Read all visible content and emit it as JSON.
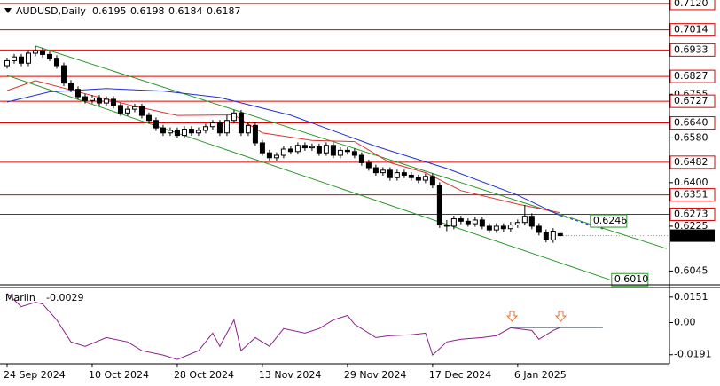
{
  "chart_data": [
    {
      "type": "candlestick",
      "symbol": "AUDUSD,Daily",
      "categories": [
        "24 Sep 2024",
        null,
        null,
        null,
        null,
        null,
        null,
        null,
        null,
        null,
        null,
        null,
        "10 Oct 2024",
        null,
        null,
        null,
        null,
        null,
        null,
        null,
        null,
        null,
        null,
        null,
        "28 Oct 2024",
        null,
        null,
        null,
        null,
        null,
        null,
        null,
        null,
        null,
        null,
        null,
        "13 Nov 2024",
        null,
        null,
        null,
        null,
        null,
        null,
        null,
        null,
        null,
        null,
        null,
        "29 Nov 2024",
        null,
        null,
        null,
        null,
        null,
        null,
        null,
        null,
        null,
        null,
        null,
        "17 Dec 2024",
        null,
        null,
        null,
        null,
        null,
        null,
        null,
        null,
        null,
        null,
        null,
        "6 Jan 2025",
        null,
        null,
        null,
        null,
        null,
        null
      ],
      "open": [
        0.687,
        0.689,
        0.6905,
        0.688,
        0.692,
        0.693,
        0.6915,
        0.69,
        0.687,
        0.68,
        0.6775,
        0.6745,
        0.673,
        0.674,
        0.672,
        0.6735,
        0.671,
        0.668,
        0.6695,
        0.6705,
        0.667,
        0.665,
        0.662,
        0.66,
        0.661,
        0.659,
        0.6615,
        0.66,
        0.661,
        0.6625,
        0.664,
        0.66,
        0.665,
        0.668,
        0.66,
        0.663,
        0.656,
        0.652,
        0.65,
        0.651,
        0.6535,
        0.6525,
        0.655,
        0.654,
        0.6545,
        0.652,
        0.655,
        0.651,
        0.653,
        0.6525,
        0.651,
        0.648,
        0.646,
        0.644,
        0.645,
        0.642,
        0.644,
        0.643,
        0.642,
        0.641,
        0.6425,
        0.639,
        0.623,
        0.6225,
        0.6255,
        0.6245,
        0.6235,
        0.625,
        0.6225,
        0.621,
        0.6225,
        0.6215,
        0.623,
        0.624,
        0.6265,
        0.6225,
        0.62,
        0.617,
        0.6195
      ],
      "high": [
        0.6902,
        0.6917,
        0.6917,
        0.6932,
        0.6948,
        0.6942,
        0.6927,
        0.6912,
        0.6882,
        0.6812,
        0.6787,
        0.6757,
        0.6752,
        0.6752,
        0.6747,
        0.6747,
        0.6722,
        0.6707,
        0.6717,
        0.6717,
        0.6682,
        0.6662,
        0.6632,
        0.6622,
        0.6622,
        0.6627,
        0.6627,
        0.6622,
        0.6637,
        0.6652,
        0.6652,
        0.6672,
        0.6692,
        0.6692,
        0.6642,
        0.6642,
        0.6572,
        0.6532,
        0.6522,
        0.6547,
        0.6547,
        0.6562,
        0.6562,
        0.6557,
        0.6557,
        0.6562,
        0.6562,
        0.6542,
        0.6542,
        0.6537,
        0.6522,
        0.6492,
        0.6472,
        0.6462,
        0.6462,
        0.6452,
        0.6452,
        0.6442,
        0.6432,
        0.6437,
        0.6437,
        0.6402,
        0.625,
        0.6267,
        0.6267,
        0.6257,
        0.6262,
        0.6262,
        0.6237,
        0.6237,
        0.6237,
        0.6242,
        0.6252,
        0.631,
        0.6277,
        0.6237,
        0.6212,
        0.6217,
        0.6198
      ],
      "low": [
        0.6858,
        0.6878,
        0.6868,
        0.6868,
        0.6908,
        0.6903,
        0.6888,
        0.6858,
        0.6788,
        0.6763,
        0.6733,
        0.6718,
        0.6718,
        0.6708,
        0.6708,
        0.6698,
        0.6668,
        0.6668,
        0.6683,
        0.6658,
        0.6638,
        0.6608,
        0.6588,
        0.6588,
        0.6578,
        0.6578,
        0.6588,
        0.6588,
        0.6598,
        0.6613,
        0.6588,
        0.6588,
        0.6638,
        0.6588,
        0.6588,
        0.6548,
        0.6508,
        0.6488,
        0.6488,
        0.6498,
        0.6513,
        0.6513,
        0.6528,
        0.6528,
        0.6508,
        0.6508,
        0.6498,
        0.6498,
        0.6513,
        0.6498,
        0.6468,
        0.6448,
        0.6428,
        0.6428,
        0.6408,
        0.6408,
        0.6418,
        0.6408,
        0.6398,
        0.6398,
        0.6378,
        0.6218,
        0.6205,
        0.6213,
        0.6233,
        0.6223,
        0.6223,
        0.6213,
        0.6198,
        0.6198,
        0.6203,
        0.6203,
        0.6218,
        0.6228,
        0.6213,
        0.6188,
        0.616,
        0.6158,
        0.6184
      ],
      "close": [
        0.689,
        0.6905,
        0.688,
        0.692,
        0.693,
        0.6915,
        0.69,
        0.687,
        0.68,
        0.6775,
        0.6745,
        0.673,
        0.674,
        0.672,
        0.6735,
        0.671,
        0.668,
        0.6695,
        0.6705,
        0.667,
        0.665,
        0.662,
        0.66,
        0.661,
        0.659,
        0.6615,
        0.66,
        0.661,
        0.6625,
        0.664,
        0.66,
        0.665,
        0.668,
        0.66,
        0.663,
        0.656,
        0.652,
        0.65,
        0.651,
        0.6535,
        0.6525,
        0.655,
        0.654,
        0.6545,
        0.652,
        0.655,
        0.651,
        0.653,
        0.6525,
        0.651,
        0.648,
        0.646,
        0.644,
        0.645,
        0.642,
        0.644,
        0.643,
        0.642,
        0.641,
        0.6425,
        0.639,
        0.623,
        0.6225,
        0.6255,
        0.6245,
        0.6235,
        0.625,
        0.6225,
        0.621,
        0.6225,
        0.6215,
        0.623,
        0.624,
        0.6265,
        0.6225,
        0.62,
        0.617,
        0.6205,
        0.6187
      ],
      "xlim": [
        -1,
        93.4
      ],
      "ylim": [
        0.5993,
        0.7134
      ],
      "yticks": [
        0.6755,
        {
          "value": 0.658,
          "label": "0.6580"
        },
        {
          "value": 0.64,
          "label": "0.6400"
        },
        0.6225,
        0.6045
      ],
      "levels": [
        {
          "value": 0.712,
          "label": "0.7120"
        },
        0.7014,
        0.6933,
        0.6827,
        0.6727,
        {
          "value": 0.664,
          "label": "0.6640"
        },
        0.6482,
        0.6351,
        0.6273
      ],
      "level_color": "#e00000",
      "channel_color": "#2a9a2a",
      "channel_labels": [
        {
          "x": 82.5,
          "value": 0.6246
        },
        {
          "x": 85.5,
          "value": {
            "value": 0.601,
            "label": "0.6010"
          }
        }
      ],
      "trendlines": [
        {
          "x": [
            4,
            93
          ],
          "values": [
            0.6949,
            0.6135
          ]
        },
        {
          "x": [
            0,
            85
          ],
          "values": [
            0.6831,
            0.601
          ]
        }
      ],
      "moving_averages": [
        {
          "color": "#e03030",
          "x": [
            0,
            4,
            12,
            18,
            24,
            32,
            36,
            43,
            49,
            54,
            59,
            64,
            72,
            78
          ],
          "values": [
            0.677,
            0.681,
            0.675,
            0.6707,
            0.667,
            0.6672,
            0.66,
            0.657,
            0.6565,
            0.648,
            0.644,
            0.6368,
            0.6314,
            0.6279
          ]
        },
        {
          "color": "#2030d0",
          "x": [
            0,
            6,
            14,
            22,
            30,
            40,
            52,
            62,
            72,
            78
          ],
          "values": [
            0.6724,
            0.6765,
            0.6778,
            0.6768,
            0.6742,
            0.6671,
            0.6546,
            0.6457,
            0.635,
            0.6268
          ]
        }
      ],
      "projection": {
        "color": "#2030d0",
        "x": [
          78,
          84
        ],
        "values": [
          0.6268,
          0.6214
        ]
      }
    },
    {
      "type": "line",
      "title": "Marlin",
      "color": "#8a1f8a",
      "x": [
        0,
        2,
        4,
        5,
        7,
        9,
        11,
        14,
        17,
        19,
        22,
        24,
        27,
        29,
        30,
        32,
        33,
        35,
        37,
        39,
        42,
        44,
        46,
        48,
        49,
        52,
        54,
        57,
        59,
        60,
        62,
        64,
        67,
        69,
        71,
        74,
        75,
        77,
        78
      ],
      "values": [
        0.0172,
        0.0094,
        0.012,
        0.011,
        0.0016,
        -0.0115,
        -0.0141,
        -0.0089,
        -0.0115,
        -0.0167,
        -0.0193,
        -0.0219,
        -0.0167,
        -0.0063,
        -0.0141,
        0.0016,
        -0.0167,
        -0.0089,
        -0.0141,
        -0.0036,
        -0.0063,
        -0.0036,
        0.0016,
        0.0042,
        -0.001,
        -0.0089,
        -0.0078,
        -0.0073,
        -0.0063,
        -0.0193,
        -0.0115,
        -0.0099,
        -0.0089,
        -0.0078,
        -0.0031,
        -0.0047,
        -0.0099,
        -0.0047,
        -0.0029
      ],
      "xlim": [
        -1,
        93.4
      ],
      "ylim": [
        -0.0245,
        0.0208
      ],
      "yticks": [
        0.0151,
        {
          "value": 0,
          "label": "0.00"
        },
        -0.0191
      ],
      "signal_line": {
        "x": [
          71,
          84
        ],
        "value": -0.0031,
        "color": "#6fa0c0"
      }
    }
  ]
}
